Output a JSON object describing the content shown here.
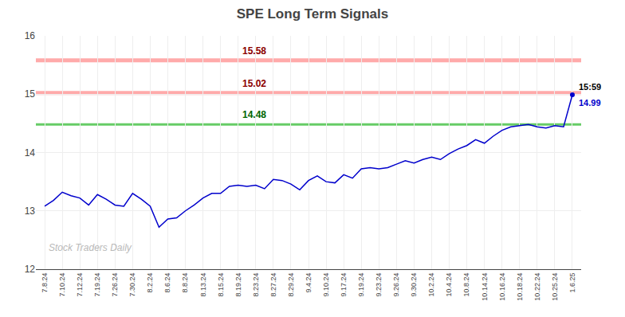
{
  "chart_data": {
    "type": "line",
    "title": "SPE Long Term Signals",
    "categories": [
      "7.8.24",
      null,
      "7.10.24",
      null,
      "7.12.24",
      null,
      "7.19.24",
      null,
      "7.26.24",
      null,
      "7.30.24",
      null,
      "8.2.24",
      null,
      "8.6.24",
      null,
      "8.8.24",
      null,
      "8.13.24",
      null,
      "8.15.24",
      null,
      "8.19.24",
      null,
      "8.23.24",
      null,
      "8.27.24",
      null,
      "8.29.24",
      null,
      "9.4.24",
      null,
      "9.10.24",
      null,
      "9.17.24",
      null,
      "9.19.24",
      null,
      "9.23.24",
      null,
      "9.26.24",
      null,
      "9.30.24",
      null,
      "10.2.24",
      null,
      "10.4.24",
      null,
      "10.8.24",
      null,
      "10.14.24",
      null,
      "10.16.24",
      null,
      "10.18.24",
      null,
      "10.22.24",
      null,
      "10.25.24",
      null,
      "1.6.25"
    ],
    "values": [
      13.08,
      13.18,
      13.32,
      13.26,
      13.22,
      13.1,
      13.28,
      13.2,
      13.1,
      13.08,
      13.3,
      13.2,
      13.08,
      12.72,
      12.86,
      12.88,
      13.0,
      13.1,
      13.22,
      13.3,
      13.3,
      13.42,
      13.44,
      13.42,
      13.44,
      13.38,
      13.54,
      13.52,
      13.46,
      13.36,
      13.52,
      13.6,
      13.5,
      13.48,
      13.62,
      13.56,
      13.72,
      13.74,
      13.72,
      13.74,
      13.8,
      13.86,
      13.82,
      13.88,
      13.92,
      13.88,
      13.98,
      14.06,
      14.12,
      14.22,
      14.16,
      14.28,
      14.38,
      14.44,
      14.46,
      14.48,
      14.44,
      14.42,
      14.46,
      14.44,
      14.99
    ],
    "color": "#0000cc",
    "hlines": [
      {
        "value": 15.58,
        "label": "15.58",
        "color": "#ffaaaa",
        "label_color": "darkred"
      },
      {
        "value": 15.02,
        "label": "15.02",
        "color": "#ffaaaa",
        "label_color": "darkred"
      },
      {
        "value": 14.48,
        "label": "14.48",
        "color": "#66cc66",
        "label_color": "darkgreen"
      }
    ],
    "annotations": [
      "15:59",
      "14.99"
    ],
    "watermark": "Stock Traders Daily",
    "ylim": [
      12,
      16
    ],
    "yticks": [
      12,
      13,
      14,
      15,
      16
    ],
    "grid": true
  }
}
